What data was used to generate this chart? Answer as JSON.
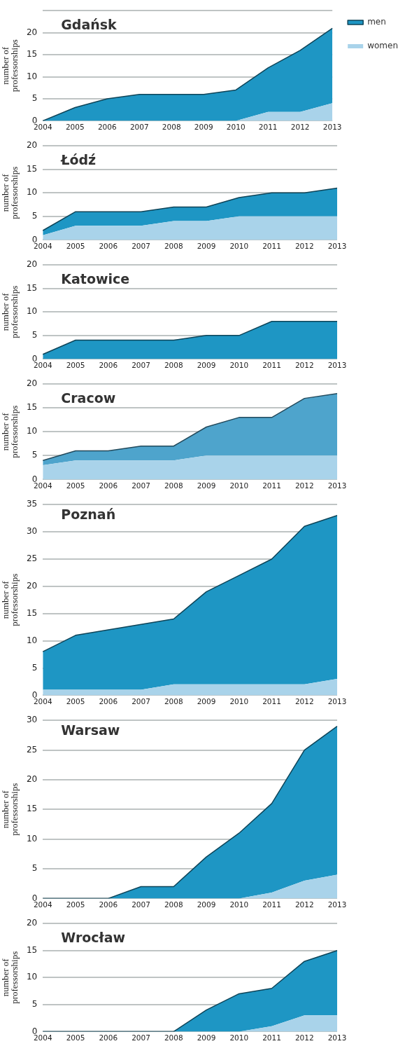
{
  "chart_data": [
    {
      "type": "area",
      "title": "Gdańsk",
      "ylabel": "number of professorships",
      "stacked": true,
      "grid": "y",
      "legend": "top right",
      "categories": [
        "2004",
        "2005",
        "2006",
        "2007",
        "2008",
        "2009",
        "2010",
        "2011",
        "2012",
        "2013"
      ],
      "ylim": [
        0,
        25
      ],
      "yticks": [
        0,
        5,
        10,
        15,
        20,
        {
          "value": 25,
          "label": null
        }
      ],
      "series": [
        {
          "name": "women",
          "color": "#a9d3ea",
          "values": [
            0,
            0,
            0,
            0,
            0,
            0,
            0,
            2,
            2,
            4
          ]
        },
        {
          "name": "men",
          "color": "#1e96c4",
          "values": [
            0,
            3,
            5,
            6,
            6,
            6,
            7,
            10,
            14,
            17
          ]
        }
      ]
    },
    {
      "type": "area",
      "title": "Łódź",
      "ylabel": "number of professorships",
      "stacked": true,
      "grid": "y",
      "categories": [
        "2004",
        "2005",
        "2006",
        "2007",
        "2008",
        "2009",
        "2010",
        "2011",
        "2012",
        "2013"
      ],
      "ylim": [
        0,
        20
      ],
      "yticks": [
        0,
        5,
        10,
        15,
        20
      ],
      "series": [
        {
          "color": "#a9d3ea",
          "values": [
            1,
            3,
            3,
            3,
            4,
            4,
            5,
            5,
            5,
            5
          ]
        },
        {
          "color": "#1e96c4",
          "values": [
            1,
            3,
            3,
            3,
            3,
            3,
            4,
            5,
            5,
            6
          ]
        }
      ]
    },
    {
      "type": "area",
      "title": "Katowice",
      "ylabel": "number of professorships",
      "stacked": true,
      "grid": "y",
      "categories": [
        "2004",
        "2005",
        "2006",
        "2007",
        "2008",
        "2009",
        "2010",
        "2011",
        "2012",
        "2013"
      ],
      "ylim": [
        0,
        20
      ],
      "yticks": [
        0,
        5,
        10,
        15,
        20
      ],
      "series": [
        {
          "color": "#1e96c4",
          "values": [
            1,
            4,
            4,
            4,
            4,
            5,
            5,
            8,
            8,
            8
          ]
        }
      ]
    },
    {
      "type": "area",
      "title": "Cracow",
      "ylabel": "number of professorships",
      "stacked": true,
      "grid": "y",
      "categories": [
        "2004",
        "2005",
        "2006",
        "2007",
        "2008",
        "2009",
        "2010",
        "2011",
        "2012",
        "2013"
      ],
      "ylim": [
        0,
        20
      ],
      "yticks": [
        0,
        5,
        10,
        15,
        20
      ],
      "series": [
        {
          "color": "#a9d3ea",
          "values": [
            3,
            4,
            4,
            4,
            4,
            5,
            5,
            5,
            5,
            5
          ]
        },
        {
          "color": "#4ea4cc",
          "values": [
            1,
            2,
            2,
            3,
            3,
            6,
            8,
            8,
            12,
            13
          ]
        }
      ]
    },
    {
      "type": "area",
      "title": "Poznań",
      "ylabel": "number of professorships",
      "stacked": true,
      "grid": "y",
      "categories": [
        "2004",
        "2005",
        "2006",
        "2007",
        "2008",
        "2009",
        "2010",
        "2011",
        "2012",
        "2013"
      ],
      "ylim": [
        0,
        35
      ],
      "yticks": [
        0,
        5,
        10,
        15,
        20,
        25,
        30,
        35
      ],
      "series": [
        {
          "color": "#a9d3ea",
          "values": [
            1,
            1,
            1,
            1,
            2,
            2,
            2,
            2,
            2,
            3
          ]
        },
        {
          "color": "#1e96c4",
          "values": [
            7,
            10,
            11,
            12,
            12,
            17,
            20,
            23,
            29,
            30
          ]
        }
      ]
    },
    {
      "type": "area",
      "title": "Warsaw",
      "ylabel": "number of professorships",
      "stacked": true,
      "grid": "y",
      "categories": [
        "2004",
        "2005",
        "2006",
        "2007",
        "2008",
        "2009",
        "2010",
        "2011",
        "2012",
        "2013"
      ],
      "ylim": [
        0,
        30
      ],
      "yticks": [
        0,
        5,
        10,
        15,
        20,
        25,
        30
      ],
      "series": [
        {
          "color": "#a9d3ea",
          "values": [
            0,
            0,
            0,
            0,
            0,
            0,
            0,
            1,
            3,
            4
          ]
        },
        {
          "color": "#1e96c4",
          "values": [
            0,
            0,
            0,
            2,
            2,
            7,
            11,
            15,
            22,
            25
          ]
        }
      ]
    },
    {
      "type": "area",
      "title": "Wrocław",
      "ylabel": "number of professorships",
      "stacked": true,
      "grid": "y",
      "categories": [
        "2004",
        "2005",
        "2006",
        "2007",
        "2008",
        "2009",
        "2010",
        "2011",
        "2012",
        "2013"
      ],
      "ylim": [
        0,
        20
      ],
      "yticks": [
        0,
        5,
        10,
        15,
        20
      ],
      "series": [
        {
          "color": "#a9d3ea",
          "values": [
            0,
            0,
            0,
            0,
            0,
            0,
            0,
            1,
            3,
            3
          ]
        },
        {
          "color": "#1e96c4",
          "values": [
            0,
            0,
            0,
            0,
            0,
            4,
            7,
            7,
            10,
            12
          ]
        }
      ]
    }
  ]
}
